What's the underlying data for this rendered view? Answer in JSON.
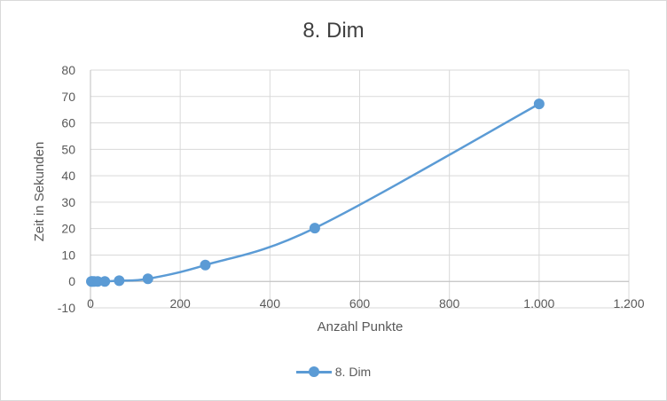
{
  "chart_data": {
    "type": "line",
    "title": "8. Dim",
    "xlabel": "Anzahl Punkte",
    "ylabel": "Zeit in Sekunden",
    "xlim": [
      0,
      1200
    ],
    "ylim": [
      -10,
      80
    ],
    "x_ticks": [
      0,
      200,
      400,
      600,
      800,
      1000,
      1200
    ],
    "x_tick_labels": [
      "0",
      "200",
      "400",
      "600",
      "800",
      "1.000",
      "1.200"
    ],
    "y_ticks": [
      -10,
      0,
      10,
      20,
      30,
      40,
      50,
      60,
      70,
      80
    ],
    "y_tick_labels": [
      "-10",
      "0",
      "10",
      "20",
      "30",
      "40",
      "50",
      "60",
      "70",
      "80"
    ],
    "grid": true,
    "legend": "bottom",
    "series": [
      {
        "name": "8. Dim",
        "color": "#5b9bd5",
        "x": [
          2,
          4,
          8,
          16,
          32,
          64,
          128,
          256,
          500,
          1000
        ],
        "y": [
          0,
          0,
          0,
          0,
          0,
          0.3,
          1,
          6.2,
          20.2,
          67.2
        ]
      }
    ]
  }
}
